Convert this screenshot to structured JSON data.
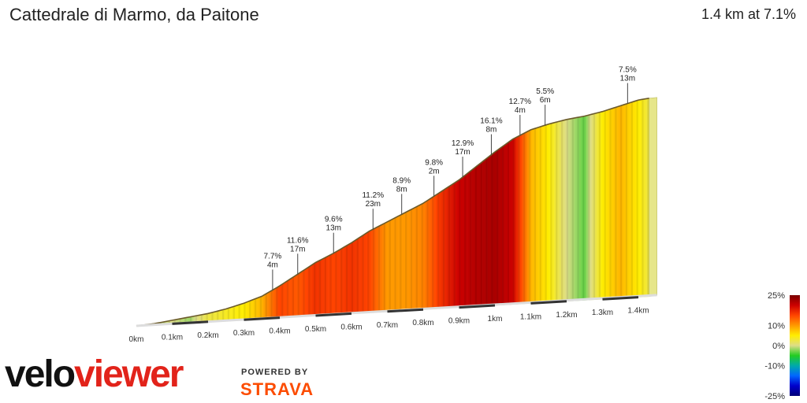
{
  "header": {
    "title": "Cattedrale di Marmo, da Paitone",
    "summary": "1.4 km at 7.1%"
  },
  "branding": {
    "logo_part1": "velo",
    "logo_part2": "viewer",
    "powered_by": "POWERED BY",
    "strava": "STRAVA"
  },
  "chart_data": {
    "type": "area",
    "x_ticks": [
      "0km",
      "0.1km",
      "0.2km",
      "0.3km",
      "0.4km",
      "0.5km",
      "0.6km",
      "0.7km",
      "0.8km",
      "0.9km",
      "1km",
      "1.1km",
      "1.2km",
      "1.3km",
      "1.4km"
    ],
    "xlim": [
      0,
      1.45
    ],
    "profile": [
      {
        "d": 0.0,
        "e": 0,
        "g": 3
      },
      {
        "d": 0.05,
        "e": 1,
        "g": 2
      },
      {
        "d": 0.1,
        "e": 3,
        "g": 3
      },
      {
        "d": 0.15,
        "e": 5,
        "g": 2
      },
      {
        "d": 0.2,
        "e": 7,
        "g": 5
      },
      {
        "d": 0.25,
        "e": 10,
        "g": 6
      },
      {
        "d": 0.3,
        "e": 14,
        "g": 7
      },
      {
        "d": 0.35,
        "e": 19,
        "g": 9
      },
      {
        "d": 0.4,
        "e": 27,
        "g": 14
      },
      {
        "d": 0.45,
        "e": 36,
        "g": 13
      },
      {
        "d": 0.5,
        "e": 45,
        "g": 15
      },
      {
        "d": 0.55,
        "e": 52,
        "g": 14
      },
      {
        "d": 0.6,
        "e": 60,
        "g": 15
      },
      {
        "d": 0.65,
        "e": 69,
        "g": 14
      },
      {
        "d": 0.7,
        "e": 76,
        "g": 10
      },
      {
        "d": 0.75,
        "e": 83,
        "g": 10
      },
      {
        "d": 0.8,
        "e": 90,
        "g": 11
      },
      {
        "d": 0.85,
        "e": 99,
        "g": 15
      },
      {
        "d": 0.9,
        "e": 108,
        "g": 18
      },
      {
        "d": 0.95,
        "e": 119,
        "g": 20
      },
      {
        "d": 1.0,
        "e": 130,
        "g": 21
      },
      {
        "d": 1.05,
        "e": 140,
        "g": 18
      },
      {
        "d": 1.1,
        "e": 147,
        "g": 9
      },
      {
        "d": 1.15,
        "e": 151,
        "g": 7
      },
      {
        "d": 1.2,
        "e": 154,
        "g": 3
      },
      {
        "d": 1.25,
        "e": 156,
        "g": 1
      },
      {
        "d": 1.3,
        "e": 159,
        "g": 7
      },
      {
        "d": 1.35,
        "e": 163,
        "g": 9
      },
      {
        "d": 1.4,
        "e": 167,
        "g": 7
      },
      {
        "d": 1.43,
        "e": 168,
        "g": 5
      }
    ],
    "annotations": [
      {
        "d": 0.38,
        "grade": "7.7%",
        "length": "4m"
      },
      {
        "d": 0.45,
        "grade": "11.6%",
        "length": "17m"
      },
      {
        "d": 0.55,
        "grade": "9.6%",
        "length": "13m"
      },
      {
        "d": 0.66,
        "grade": "11.2%",
        "length": "23m"
      },
      {
        "d": 0.74,
        "grade": "8.9%",
        "length": "8m"
      },
      {
        "d": 0.83,
        "grade": "9.8%",
        "length": "2m"
      },
      {
        "d": 0.91,
        "grade": "12.9%",
        "length": "17m"
      },
      {
        "d": 0.99,
        "grade": "16.1%",
        "length": "8m"
      },
      {
        "d": 1.07,
        "grade": "12.7%",
        "length": "4m"
      },
      {
        "d": 1.14,
        "grade": "5.5%",
        "length": "6m"
      },
      {
        "d": 1.37,
        "grade": "7.5%",
        "length": "13m"
      }
    ],
    "legend": {
      "ticks": [
        {
          "value": 25,
          "label": "25%"
        },
        {
          "value": 10,
          "label": "10%"
        },
        {
          "value": 0,
          "label": "0%"
        },
        {
          "value": -10,
          "label": "-10%"
        },
        {
          "value": -25,
          "label": "-25%"
        }
      ],
      "colors": [
        "#7a0000",
        "#cc0000",
        "#ff4400",
        "#ff9900",
        "#ffee00",
        "#dddd88",
        "#22cc22",
        "#00aaaa",
        "#0066ff",
        "#0000cc",
        "#000077"
      ]
    }
  }
}
